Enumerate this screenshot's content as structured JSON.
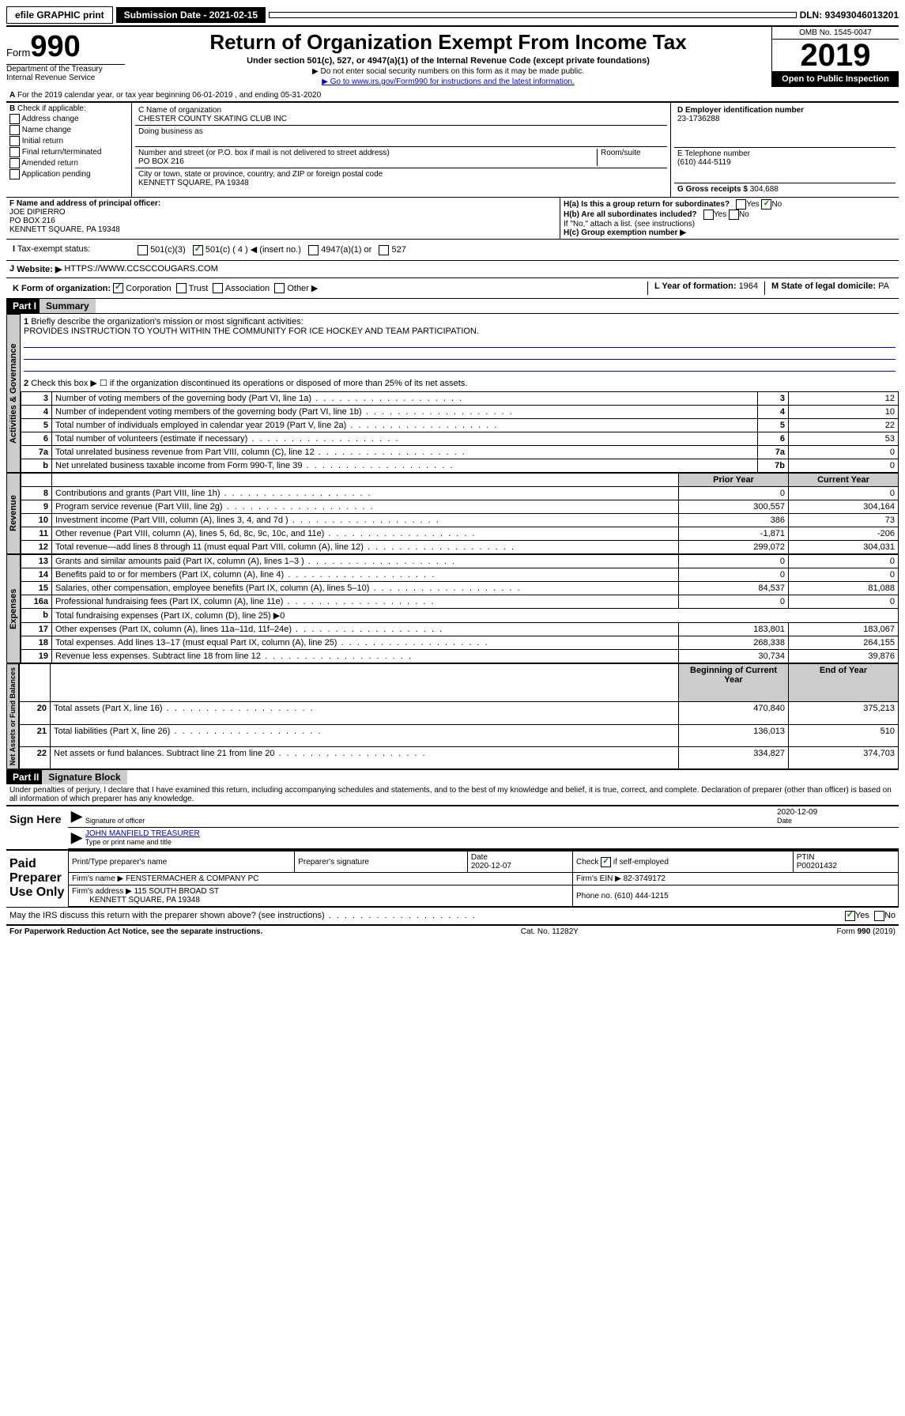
{
  "topbar": {
    "efile": "efile GRAPHIC print",
    "subdate_lbl": "Submission Date - 2021-02-15",
    "dln": "DLN: 93493046013201"
  },
  "header": {
    "form_prefix": "Form",
    "form_num": "990",
    "title": "Return of Organization Exempt From Income Tax",
    "subtitle": "Under section 501(c), 527, or 4947(a)(1) of the Internal Revenue Code (except private foundations)",
    "note1": "▶ Do not enter social security numbers on this form as it may be made public.",
    "note2": "▶ Go to www.irs.gov/Form990 for instructions and the latest information.",
    "omb": "OMB No. 1545-0047",
    "year": "2019",
    "open": "Open to Public Inspection",
    "dept": "Department of the Treasury Internal Revenue Service"
  },
  "A": {
    "text": "For the 2019 calendar year, or tax year beginning 06-01-2019    , and ending 05-31-2020"
  },
  "B": {
    "label": "Check if applicable:",
    "items": [
      "Address change",
      "Name change",
      "Initial return",
      "Final return/terminated",
      "Amended return",
      "Application pending"
    ]
  },
  "C": {
    "name_lbl": "C Name of organization",
    "name": "CHESTER COUNTY SKATING CLUB INC",
    "dba_lbl": "Doing business as",
    "addr_lbl": "Number and street (or P.O. box if mail is not delivered to street address)",
    "room_lbl": "Room/suite",
    "addr": "PO BOX 216",
    "city_lbl": "City or town, state or province, country, and ZIP or foreign postal code",
    "city": "KENNETT SQUARE, PA  19348"
  },
  "D": {
    "label": "D Employer identification number",
    "val": "23-1736288"
  },
  "E": {
    "label": "E Telephone number",
    "val": "(610) 444-5119"
  },
  "G": {
    "label": "G Gross receipts $",
    "val": "304,688"
  },
  "F": {
    "label": "F  Name and address of principal officer:",
    "name": "JOE DIPIERRO",
    "addr1": "PO BOX 216",
    "addr2": "KENNETT SQUARE, PA  19348"
  },
  "H": {
    "a": "H(a)  Is this a group return for subordinates?",
    "b": "H(b)  Are all subordinates included?",
    "b_note": "If \"No,\" attach a list. (see instructions)",
    "c": "H(c)  Group exemption number ▶"
  },
  "I": {
    "label": "Tax-exempt status:",
    "opts": [
      "501(c)(3)",
      "501(c) ( 4 ) ◀ (insert no.)",
      "4947(a)(1) or",
      "527"
    ]
  },
  "J": {
    "label": "Website: ▶",
    "val": "HTTPS://WWW.CCSCCOUGARS.COM"
  },
  "K": {
    "label": "K Form of organization:",
    "opts": [
      "Corporation",
      "Trust",
      "Association",
      "Other ▶"
    ]
  },
  "L": {
    "label": "L Year of formation:",
    "val": "1964"
  },
  "M": {
    "label": "M State of legal domicile:",
    "val": "PA"
  },
  "part1": {
    "hdr": "Part I",
    "title": "Summary"
  },
  "summary": {
    "l1": {
      "num": "1",
      "text": "Briefly describe the organization's mission or most significant activities:",
      "val": "PROVIDES INSTRUCTION TO YOUTH WITHIN THE COMMUNITY FOR ICE HOCKEY AND TEAM PARTICIPATION."
    },
    "l2": {
      "num": "2",
      "text": "Check this box ▶ ☐ if the organization discontinued its operations or disposed of more than 25% of its net assets."
    },
    "rows_ag": [
      {
        "n": "3",
        "t": "Number of voting members of the governing body (Part VI, line 1a)",
        "box": "3",
        "v": "12"
      },
      {
        "n": "4",
        "t": "Number of independent voting members of the governing body (Part VI, line 1b)",
        "box": "4",
        "v": "10"
      },
      {
        "n": "5",
        "t": "Total number of individuals employed in calendar year 2019 (Part V, line 2a)",
        "box": "5",
        "v": "22"
      },
      {
        "n": "6",
        "t": "Total number of volunteers (estimate if necessary)",
        "box": "6",
        "v": "53"
      },
      {
        "n": "7a",
        "t": "Total unrelated business revenue from Part VIII, column (C), line 12",
        "box": "7a",
        "v": "0"
      },
      {
        "n": "b",
        "t": "Net unrelated business taxable income from Form 990-T, line 39",
        "box": "7b",
        "v": "0"
      }
    ],
    "col_hdrs": {
      "prior": "Prior Year",
      "current": "Current Year"
    },
    "rev": [
      {
        "n": "8",
        "t": "Contributions and grants (Part VIII, line 1h)",
        "p": "0",
        "c": "0"
      },
      {
        "n": "9",
        "t": "Program service revenue (Part VIII, line 2g)",
        "p": "300,557",
        "c": "304,164"
      },
      {
        "n": "10",
        "t": "Investment income (Part VIII, column (A), lines 3, 4, and 7d )",
        "p": "386",
        "c": "73"
      },
      {
        "n": "11",
        "t": "Other revenue (Part VIII, column (A), lines 5, 6d, 8c, 9c, 10c, and 11e)",
        "p": "-1,871",
        "c": "-206"
      },
      {
        "n": "12",
        "t": "Total revenue—add lines 8 through 11 (must equal Part VIII, column (A), line 12)",
        "p": "299,072",
        "c": "304,031"
      }
    ],
    "exp": [
      {
        "n": "13",
        "t": "Grants and similar amounts paid (Part IX, column (A), lines 1–3 )",
        "p": "0",
        "c": "0"
      },
      {
        "n": "14",
        "t": "Benefits paid to or for members (Part IX, column (A), line 4)",
        "p": "0",
        "c": "0"
      },
      {
        "n": "15",
        "t": "Salaries, other compensation, employee benefits (Part IX, column (A), lines 5–10)",
        "p": "84,537",
        "c": "81,088"
      },
      {
        "n": "16a",
        "t": "Professional fundraising fees (Part IX, column (A), line 11e)",
        "p": "0",
        "c": "0"
      },
      {
        "n": "b",
        "t": "Total fundraising expenses (Part IX, column (D), line 25) ▶0",
        "p": "",
        "c": ""
      },
      {
        "n": "17",
        "t": "Other expenses (Part IX, column (A), lines 11a–11d, 11f–24e)",
        "p": "183,801",
        "c": "183,067"
      },
      {
        "n": "18",
        "t": "Total expenses. Add lines 13–17 (must equal Part IX, column (A), line 25)",
        "p": "268,338",
        "c": "264,155"
      },
      {
        "n": "19",
        "t": "Revenue less expenses. Subtract line 18 from line 12",
        "p": "30,734",
        "c": "39,876"
      }
    ],
    "col_hdrs2": {
      "begin": "Beginning of Current Year",
      "end": "End of Year"
    },
    "net": [
      {
        "n": "20",
        "t": "Total assets (Part X, line 16)",
        "p": "470,840",
        "c": "375,213"
      },
      {
        "n": "21",
        "t": "Total liabilities (Part X, line 26)",
        "p": "136,013",
        "c": "510"
      },
      {
        "n": "22",
        "t": "Net assets or fund balances. Subtract line 21 from line 20",
        "p": "334,827",
        "c": "374,703"
      }
    ],
    "vtabs": {
      "ag": "Activities & Governance",
      "rev": "Revenue",
      "exp": "Expenses",
      "net": "Net Assets or Fund Balances"
    }
  },
  "part2": {
    "hdr": "Part II",
    "title": "Signature Block",
    "decl": "Under penalties of perjury, I declare that I have examined this return, including accompanying schedules and statements, and to the best of my knowledge and belief, it is true, correct, and complete. Declaration of preparer (other than officer) is based on all information of which preparer has any knowledge."
  },
  "sign": {
    "here": "Sign Here",
    "sig_lbl": "Signature of officer",
    "date": "2020-12-09",
    "date_lbl": "Date",
    "name": "JOHN MANFIELD TREASURER",
    "name_lbl": "Type or print name and title"
  },
  "prep": {
    "title": "Paid Preparer Use Only",
    "h1": "Print/Type preparer's name",
    "h2": "Preparer's signature",
    "h3": "Date",
    "h4": "Check ☑ if self-employed",
    "h5": "PTIN",
    "date": "2020-12-07",
    "ptin": "P00201432",
    "firm_lbl": "Firm's name  ▶",
    "firm": "FENSTERMACHER & COMPANY PC",
    "ein_lbl": "Firm's EIN ▶",
    "ein": "82-3749172",
    "addr_lbl": "Firm's address ▶",
    "addr1": "115 SOUTH BROAD ST",
    "addr2": "KENNETT SQUARE, PA  19348",
    "phone_lbl": "Phone no.",
    "phone": "(610) 444-1215"
  },
  "discuss": {
    "text": "May the IRS discuss this return with the preparer shown above? (see instructions)"
  },
  "footer": {
    "left": "For Paperwork Reduction Act Notice, see the separate instructions.",
    "mid": "Cat. No. 11282Y",
    "right": "Form 990 (2019)"
  }
}
